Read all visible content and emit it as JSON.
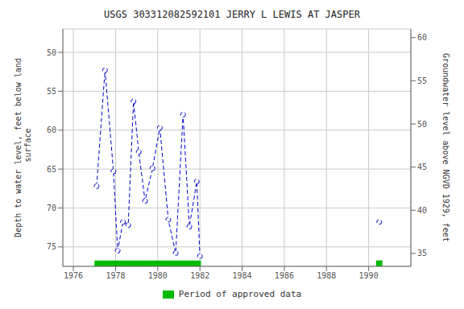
{
  "chart_data": {
    "type": "line",
    "title": "USGS 303312082592101 JERRY L LEWIS AT JASPER",
    "y_label": "Depth to water level, feet below land\n surface",
    "y2_label": "Groundwater level above NGVD 1929, feet",
    "xlim": [
      1975.5,
      1992.0
    ],
    "xticks": [
      1976,
      1978,
      1980,
      1982,
      1984,
      1986,
      1988,
      1990
    ],
    "ylim": [
      77.5,
      47.0
    ],
    "yticks": [
      50,
      55,
      60,
      65,
      70,
      75
    ],
    "y2lim": [
      33.5,
      61.0
    ],
    "y2ticks": [
      35,
      40,
      45,
      50,
      55,
      60
    ],
    "grid": true,
    "legend": "bottom",
    "series": [
      {
        "type": "line",
        "color": "#0000cc",
        "marker": "o",
        "line_style": "--",
        "x": [
          1977.1,
          1977.5,
          1977.9,
          1978.1,
          1978.35,
          1978.6,
          1978.85,
          1979.1,
          1979.4,
          1979.75,
          1980.1,
          1980.5,
          1980.85,
          1981.2,
          1981.5,
          1981.85,
          1982.0
        ],
        "values": [
          67.2,
          52.3,
          65.3,
          75.5,
          71.8,
          72.2,
          56.3,
          62.8,
          69.1,
          64.9,
          59.7,
          71.5,
          75.8,
          58.0,
          72.4,
          66.6,
          76.2
        ]
      },
      {
        "type": "line",
        "color": "#0000cc",
        "marker": "o",
        "line_style": "--",
        "x": [
          1990.5
        ],
        "values": [
          71.8
        ]
      },
      {
        "type": "band",
        "name": "Period of approved data",
        "color": "#00bb00",
        "periods": [
          [
            1977.0,
            1982.05
          ],
          [
            1990.35,
            1990.65
          ]
        ]
      }
    ]
  }
}
